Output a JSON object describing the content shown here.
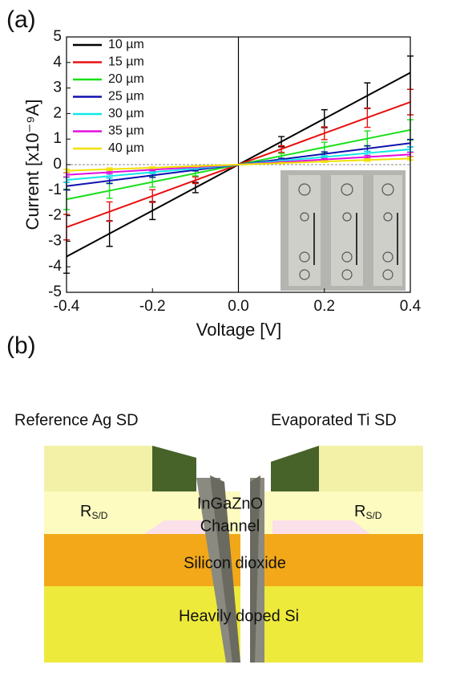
{
  "panel_labels": [
    "(a)",
    "(b)"
  ],
  "chart_data": {
    "type": "line",
    "x_label": "Voltage [V]",
    "y_label": "Current [x10⁻⁹A]",
    "x": [
      -0.4,
      -0.3,
      -0.2,
      -0.1,
      0,
      0.1,
      0.2,
      0.3,
      0.4
    ],
    "xlim": [
      -0.4,
      0.4
    ],
    "xticks": [
      -0.4,
      -0.2,
      {
        "value": 0,
        "label": "0.0"
      },
      0.2,
      0.4
    ],
    "ylim": [
      -5,
      5
    ],
    "yticks": [
      -5,
      -4,
      -3,
      -2,
      -1,
      0,
      1,
      2,
      3,
      4,
      5
    ],
    "legend": "upper left",
    "series": [
      {
        "name": "10 µm",
        "color": "#000000",
        "values": [
          -3.6,
          -2.7,
          -1.8,
          -0.9,
          0,
          0.9,
          1.8,
          2.7,
          3.6
        ],
        "errors": [
          0.65,
          0.5,
          0.35,
          0.2,
          0,
          0.2,
          0.35,
          0.5,
          0.65
        ]
      },
      {
        "name": "15 µm",
        "color": "#e81010",
        "values": [
          -2.45,
          -1.84,
          -1.23,
          -0.61,
          0,
          0.61,
          1.23,
          1.84,
          2.45
        ],
        "errors": [
          0.5,
          0.38,
          0.25,
          0.13,
          0,
          0.13,
          0.25,
          0.38,
          0.5
        ]
      },
      {
        "name": "20 µm",
        "color": "#18e018",
        "values": [
          -1.36,
          -1.02,
          -0.68,
          -0.34,
          0,
          0.34,
          0.68,
          1.02,
          1.36
        ],
        "errors": [
          0.4,
          0.3,
          0.2,
          0.1,
          0,
          0.1,
          0.2,
          0.3,
          0.4
        ]
      },
      {
        "name": "25 µm",
        "color": "#1010b0",
        "values": [
          -0.84,
          -0.63,
          -0.42,
          -0.21,
          0,
          0.21,
          0.42,
          0.63,
          0.84
        ],
        "errors": [
          0.15,
          0.11,
          0.08,
          0.04,
          0,
          0.04,
          0.08,
          0.11,
          0.15
        ]
      },
      {
        "name": "30 µm",
        "color": "#10e8e8",
        "values": [
          -0.6,
          -0.45,
          -0.3,
          -0.15,
          0,
          0.15,
          0.3,
          0.45,
          0.6
        ],
        "errors": [
          0.1,
          0.08,
          0.05,
          0.03,
          0,
          0.03,
          0.05,
          0.08,
          0.1
        ]
      },
      {
        "name": "35 µm",
        "color": "#e010e0",
        "values": [
          -0.4,
          -0.3,
          -0.2,
          -0.1,
          0,
          0.1,
          0.2,
          0.3,
          0.4
        ],
        "errors": [
          0.08,
          0.06,
          0.04,
          0.02,
          0,
          0.02,
          0.04,
          0.06,
          0.08
        ]
      },
      {
        "name": "40 µm",
        "color": "#f0e000",
        "values": [
          -0.24,
          -0.18,
          -0.12,
          -0.06,
          0,
          0.06,
          0.12,
          0.18,
          0.24
        ],
        "errors": [
          0.06,
          0.05,
          0.03,
          0.02,
          0,
          0.02,
          0.03,
          0.05,
          0.06
        ]
      }
    ]
  },
  "diagram": {
    "left_title": "Reference Ag SD",
    "right_title": "Evaporated Ti SD",
    "rsd_left": {
      "main": "R",
      "sub": "S/D"
    },
    "rsd_right": {
      "main": "R",
      "sub": "S/D"
    },
    "channel": [
      "InGaZnO",
      "Channel"
    ],
    "oxide": "Silicon dioxide",
    "substrate": "Heavily doped Si"
  }
}
